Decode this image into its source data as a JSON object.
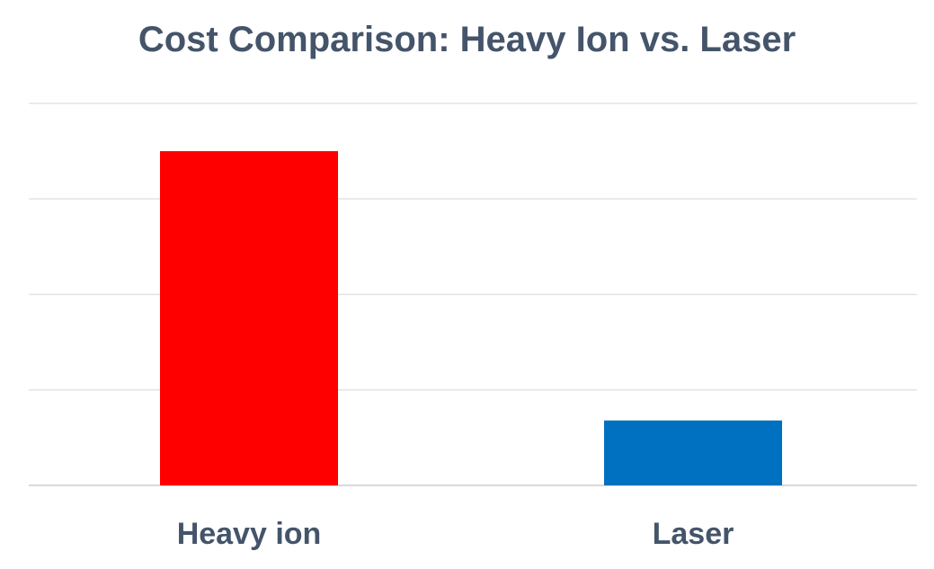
{
  "chart_data": {
    "type": "bar",
    "title": "Cost Comparison: Heavy Ion vs. Laser",
    "xlabel": "",
    "ylabel": "",
    "categories": [
      "Heavy ion",
      "Laser"
    ],
    "values": [
      3.5,
      0.68
    ],
    "ylim": [
      0,
      4
    ],
    "grid": true,
    "legend": "none",
    "bar_colors": [
      "#ff0000",
      "#0070c0"
    ],
    "gridline_color": "#e3e3e3",
    "axis_color": "#d9d9d9",
    "text_color": "#44546a"
  }
}
